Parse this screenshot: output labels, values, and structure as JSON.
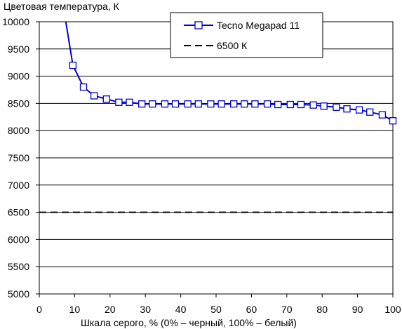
{
  "chart_data": {
    "type": "line",
    "title": "",
    "ylabel": "Цветовая температура, К",
    "xlabel": "Шкала серого, % (0% – черный, 100% – белый)",
    "xlim": [
      0,
      100
    ],
    "ylim": [
      5000,
      10000
    ],
    "x_ticks": [
      0,
      10,
      20,
      30,
      40,
      50,
      60,
      70,
      80,
      90,
      100
    ],
    "y_ticks": [
      5000,
      5500,
      6000,
      6500,
      7000,
      7500,
      8000,
      8500,
      9000,
      9500,
      10000
    ],
    "grid": "horizontal",
    "legend_position": "top-right",
    "series": [
      {
        "name": "Tecno Megapad 11",
        "color": "#0000cc",
        "marker": "open-square",
        "x": [
          7.5,
          9.5,
          12.5,
          15.5,
          19,
          22.5,
          25.5,
          29,
          32,
          35.5,
          38.5,
          42,
          45,
          48.5,
          51.5,
          55,
          58,
          61,
          64.5,
          67.5,
          71,
          74,
          77.5,
          80.5,
          84,
          87,
          90.5,
          93.5,
          97,
          100
        ],
        "y": [
          10000,
          9200,
          8800,
          8640,
          8580,
          8520,
          8520,
          8490,
          8490,
          8490,
          8490,
          8490,
          8490,
          8490,
          8490,
          8490,
          8490,
          8490,
          8490,
          8480,
          8480,
          8480,
          8470,
          8450,
          8430,
          8400,
          8380,
          8340,
          8290,
          8180
        ],
        "marker_from_index": 1
      },
      {
        "name": "6500 К",
        "color": "#000000",
        "style": "dashed",
        "x": [
          0,
          100
        ],
        "y": [
          6500,
          6500
        ]
      }
    ]
  }
}
